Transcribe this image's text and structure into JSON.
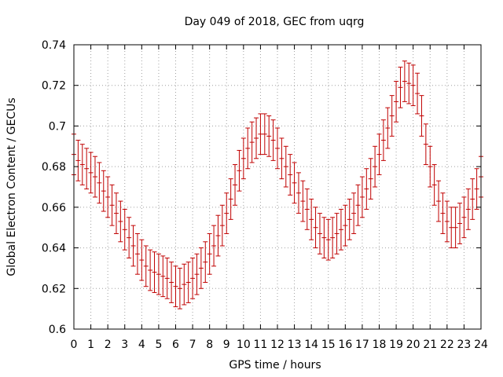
{
  "chart_data": {
    "type": "scatter",
    "title": "Day 049 of 2018, GEC from uqrg",
    "xlabel": "GPS time / hours",
    "ylabel": "Global Electron Content / GECUs",
    "xlim": [
      0,
      24
    ],
    "ylim": [
      0.6,
      0.74
    ],
    "xticks": [
      0,
      1,
      2,
      3,
      4,
      5,
      6,
      7,
      8,
      9,
      10,
      11,
      12,
      13,
      14,
      15,
      16,
      17,
      18,
      19,
      20,
      21,
      22,
      23,
      24
    ],
    "yticks": [
      0.6,
      0.62,
      0.64,
      0.66,
      0.68,
      0.7,
      0.72,
      0.74
    ],
    "ytick_labels": [
      "0.6",
      "0.62",
      "0.64",
      "0.66",
      "0.68",
      "0.7",
      "0.72",
      "0.74"
    ],
    "grid": true,
    "legend": "none",
    "color": "#c00000",
    "error_bar": 0.01,
    "x": [
      0,
      0.25,
      0.5,
      0.75,
      1,
      1.25,
      1.5,
      1.75,
      2,
      2.25,
      2.5,
      2.75,
      3,
      3.25,
      3.5,
      3.75,
      4,
      4.25,
      4.5,
      4.75,
      5,
      5.25,
      5.5,
      5.75,
      6,
      6.25,
      6.5,
      6.75,
      7,
      7.25,
      7.5,
      7.75,
      8,
      8.25,
      8.5,
      8.75,
      9,
      9.25,
      9.5,
      9.75,
      10,
      10.25,
      10.5,
      10.75,
      11,
      11.25,
      11.5,
      11.75,
      12,
      12.25,
      12.5,
      12.75,
      13,
      13.25,
      13.5,
      13.75,
      14,
      14.25,
      14.5,
      14.75,
      15,
      15.25,
      15.5,
      15.75,
      16,
      16.25,
      16.5,
      16.75,
      17,
      17.25,
      17.5,
      17.75,
      18,
      18.25,
      18.5,
      18.75,
      19,
      19.25,
      19.5,
      19.75,
      20,
      20.25,
      20.5,
      20.75,
      21,
      21.25,
      21.5,
      21.75,
      22,
      22.25,
      22.5,
      22.75,
      23,
      23.25,
      23.5,
      23.75,
      24
    ],
    "y": [
      0.686,
      0.683,
      0.681,
      0.679,
      0.677,
      0.675,
      0.672,
      0.668,
      0.665,
      0.661,
      0.657,
      0.653,
      0.649,
      0.645,
      0.641,
      0.637,
      0.634,
      0.631,
      0.629,
      0.628,
      0.627,
      0.626,
      0.625,
      0.623,
      0.621,
      0.62,
      0.622,
      0.623,
      0.625,
      0.627,
      0.63,
      0.633,
      0.637,
      0.641,
      0.646,
      0.651,
      0.657,
      0.664,
      0.671,
      0.678,
      0.684,
      0.689,
      0.692,
      0.694,
      0.696,
      0.696,
      0.695,
      0.693,
      0.689,
      0.684,
      0.68,
      0.676,
      0.672,
      0.667,
      0.663,
      0.659,
      0.654,
      0.65,
      0.647,
      0.645,
      0.644,
      0.645,
      0.647,
      0.649,
      0.651,
      0.654,
      0.657,
      0.661,
      0.665,
      0.669,
      0.674,
      0.68,
      0.686,
      0.693,
      0.699,
      0.705,
      0.712,
      0.719,
      0.722,
      0.721,
      0.72,
      0.716,
      0.705,
      0.691,
      0.68,
      0.671,
      0.663,
      0.657,
      0.653,
      0.65,
      0.65,
      0.652,
      0.655,
      0.659,
      0.664,
      0.669,
      0.675
    ]
  }
}
